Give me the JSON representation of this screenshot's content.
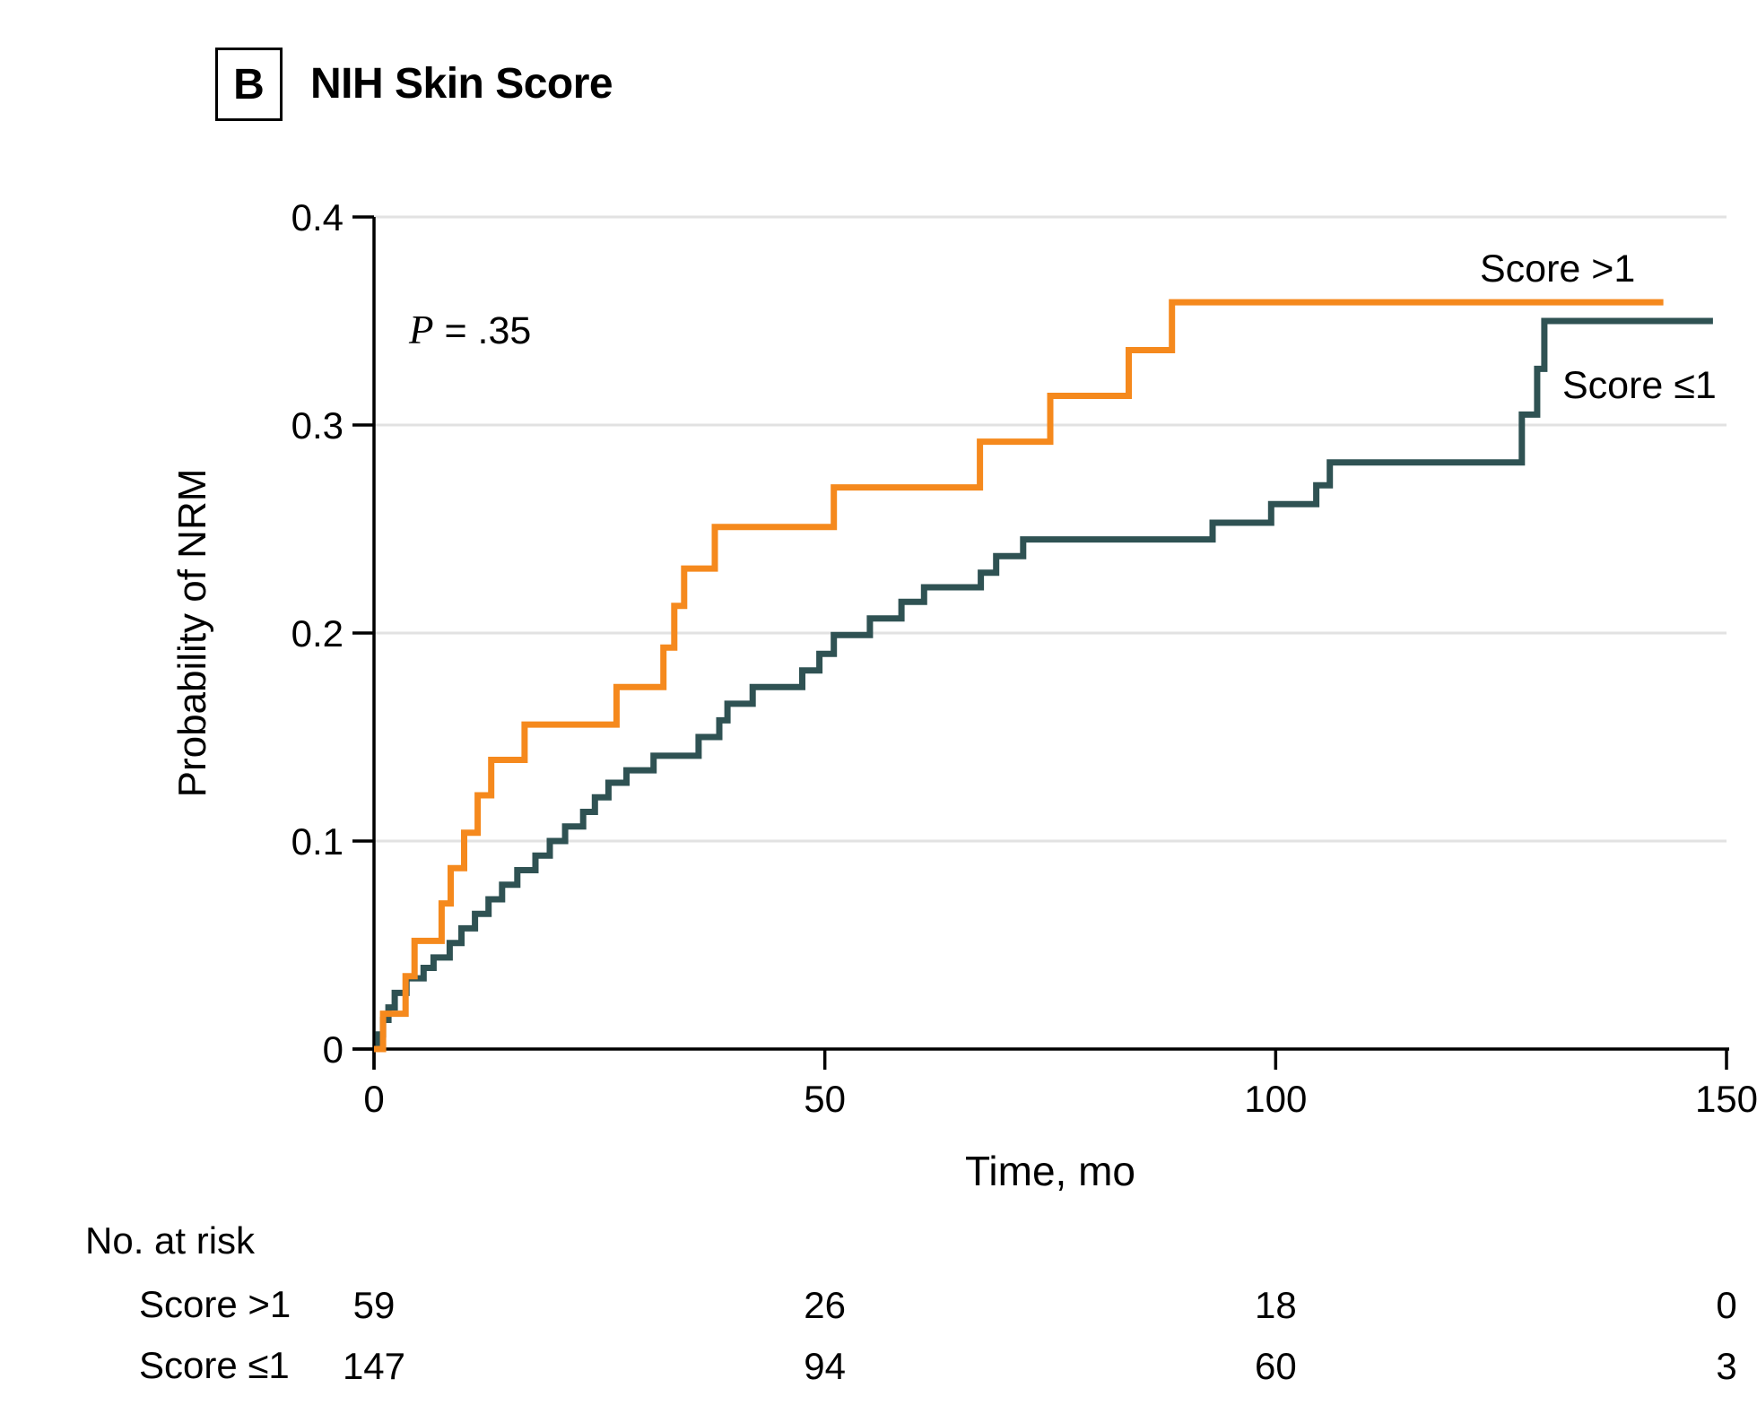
{
  "panel": {
    "label": "B",
    "title": "NIH Skin Score"
  },
  "annotation": {
    "p_symbol": "P",
    "p_rest": " = .35"
  },
  "chart_data": {
    "type": "line",
    "subtype": "step-cumulative-incidence",
    "title": "NIH Skin Score",
    "xlabel": "Time, mo",
    "ylabel": "Probability of NRM",
    "xlim": [
      0,
      150
    ],
    "ylim": [
      0,
      0.4
    ],
    "xticks": [
      0,
      50,
      100,
      150
    ],
    "yticks": [
      0,
      0.1,
      0.2,
      0.3,
      0.4
    ],
    "xtick_labels": [
      "0",
      "50",
      "100",
      "150"
    ],
    "ytick_labels": [
      "0",
      "0.1",
      "0.2",
      "0.3",
      "0.4"
    ],
    "grid": "horizontal",
    "grid_color": "#E2E2E2",
    "axis_color": "#000000",
    "p_value": "P = .35",
    "legend_position": "right-of-curve-ends",
    "series": [
      {
        "name": "Score >1",
        "color": "#F5891D",
        "start": [
          0,
          0
        ],
        "end_time": 143,
        "steps": [
          [
            1,
            0.017
          ],
          [
            3.5,
            0.035
          ],
          [
            4.5,
            0.052
          ],
          [
            7.5,
            0.07
          ],
          [
            8.5,
            0.087
          ],
          [
            10,
            0.104
          ],
          [
            11.5,
            0.122
          ],
          [
            13,
            0.139
          ],
          [
            16.7,
            0.156
          ],
          [
            26.9,
            0.174
          ],
          [
            32.1,
            0.193
          ],
          [
            33.3,
            0.213
          ],
          [
            34.4,
            0.231
          ],
          [
            37.8,
            0.251
          ],
          [
            51,
            0.27
          ],
          [
            67.2,
            0.292
          ],
          [
            75,
            0.314
          ],
          [
            83.7,
            0.336
          ],
          [
            88.5,
            0.359
          ]
        ]
      },
      {
        "name": "Score ≤1",
        "color": "#2F5253",
        "start": [
          0,
          0
        ],
        "end_time": 148.5,
        "steps": [
          [
            0.5,
            0.007
          ],
          [
            1,
            0.014
          ],
          [
            1.6,
            0.02
          ],
          [
            2.3,
            0.027
          ],
          [
            3.6,
            0.034
          ],
          [
            5.5,
            0.039
          ],
          [
            6.6,
            0.044
          ],
          [
            8.4,
            0.051
          ],
          [
            9.7,
            0.058
          ],
          [
            11.2,
            0.065
          ],
          [
            12.7,
            0.072
          ],
          [
            14.2,
            0.079
          ],
          [
            15.9,
            0.086
          ],
          [
            17.9,
            0.093
          ],
          [
            19.5,
            0.1
          ],
          [
            21.2,
            0.107
          ],
          [
            23.2,
            0.114
          ],
          [
            24.5,
            0.121
          ],
          [
            26,
            0.128
          ],
          [
            28,
            0.134
          ],
          [
            31,
            0.141
          ],
          [
            36,
            0.15
          ],
          [
            38.3,
            0.158
          ],
          [
            39.2,
            0.166
          ],
          [
            42,
            0.174
          ],
          [
            47.5,
            0.182
          ],
          [
            49.4,
            0.19
          ],
          [
            51,
            0.199
          ],
          [
            55,
            0.207
          ],
          [
            58.5,
            0.215
          ],
          [
            61,
            0.222
          ],
          [
            67.3,
            0.229
          ],
          [
            69,
            0.237
          ],
          [
            72,
            0.245
          ],
          [
            93,
            0.253
          ],
          [
            99.5,
            0.262
          ],
          [
            104.5,
            0.271
          ],
          [
            106,
            0.282
          ],
          [
            127.3,
            0.305
          ],
          [
            129,
            0.327
          ],
          [
            129.8,
            0.35
          ]
        ]
      }
    ]
  },
  "risk_table": {
    "header": "No. at risk",
    "times": [
      0,
      50,
      100,
      150
    ],
    "rows": [
      {
        "label": "Score >1",
        "values": [
          "59",
          "26",
          "18",
          "0"
        ]
      },
      {
        "label": "Score ≤1",
        "values": [
          "147",
          "94",
          "60",
          "3"
        ]
      }
    ]
  }
}
